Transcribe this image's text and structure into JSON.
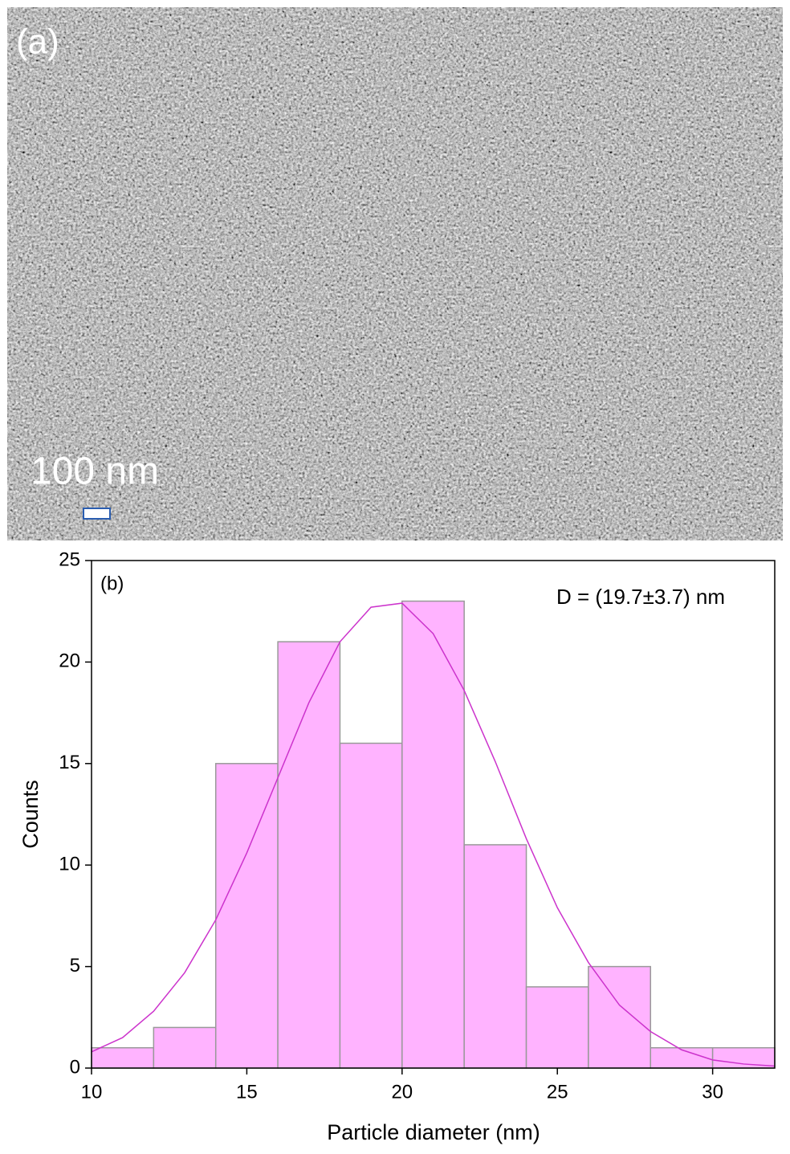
{
  "image": {
    "label": "(a)",
    "scale_bar": "100 nm"
  },
  "chart_data": {
    "type": "histogram",
    "xlabel": "Particle diameter (nm)",
    "ylabel": "Counts",
    "annotations": [
      "(b)",
      "D = (19.7±3.7) nm"
    ],
    "bins": [
      10,
      12,
      14,
      16,
      18,
      20,
      22,
      24,
      26,
      28,
      30,
      32
    ],
    "values": [
      1,
      2,
      15,
      21,
      16,
      23,
      11,
      4,
      5,
      1,
      1
    ],
    "color": "#ffb3ff",
    "fit": {
      "x": [
        10,
        11,
        12,
        13,
        14,
        15,
        16,
        17,
        18,
        19,
        20,
        21,
        22,
        23,
        24,
        25,
        26,
        27,
        28,
        29,
        30,
        31,
        32
      ],
      "values": [
        0.8,
        1.5,
        2.8,
        4.7,
        7.3,
        10.6,
        14.3,
        18.0,
        21.0,
        22.7,
        22.9,
        21.4,
        18.6,
        15.1,
        11.3,
        7.9,
        5.2,
        3.1,
        1.8,
        0.9,
        0.4,
        0.2,
        0.1
      ],
      "color": "#cc33cc"
    },
    "xlim": [
      10,
      32
    ],
    "xticks": [
      10,
      15,
      20,
      25,
      30
    ],
    "ylim": [
      0,
      25
    ],
    "yticks": [
      0,
      5,
      10,
      15,
      20,
      25
    ]
  }
}
